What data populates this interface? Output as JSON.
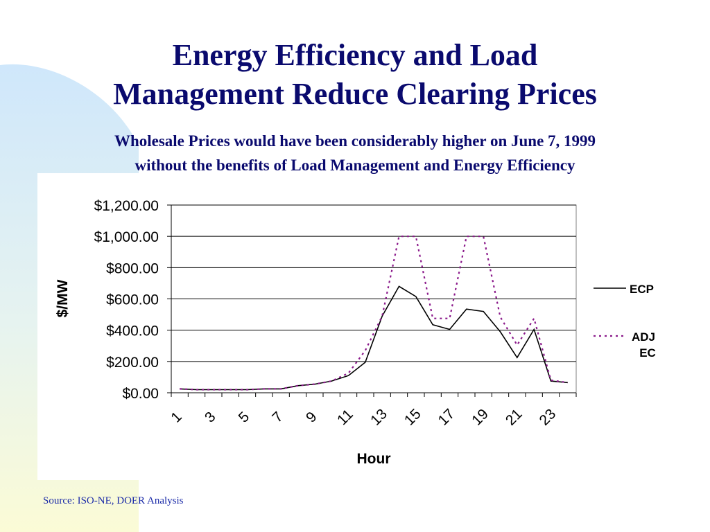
{
  "slide": {
    "title_line1": "Energy Efficiency and Load",
    "title_line2": "Management Reduce Clearing Prices",
    "subtitle_line1": "Wholesale Prices would have been considerably higher on June 7, 1999",
    "subtitle_line2": "without the benefits of Load Management and Energy Efficiency",
    "source": "Source:  ISO-NE, DOER Analysis"
  },
  "colors": {
    "title": "#0a0a6e",
    "source": "#1a2aa8",
    "ecp_line": "#000000",
    "adj_line": "#8b1a8b",
    "bg_blue": "#cfe7fb",
    "bg_yellow": "#fbfbd6"
  },
  "chart_data": {
    "type": "line",
    "xlabel": "Hour",
    "ylabel": "$/MW",
    "ylim": [
      0,
      1200
    ],
    "yticks": [
      0,
      200,
      400,
      600,
      800,
      1000,
      1200
    ],
    "ytick_labels": [
      "$0.00",
      "$200.00",
      "$400.00",
      "$600.00",
      "$800.00",
      "$1,000.00",
      "$1,200.00"
    ],
    "x": [
      1,
      2,
      3,
      4,
      5,
      6,
      7,
      8,
      9,
      10,
      11,
      12,
      13,
      14,
      15,
      16,
      17,
      18,
      19,
      20,
      21,
      22,
      23,
      24
    ],
    "xtick_labels": [
      "1",
      "3",
      "5",
      "7",
      "9",
      "11",
      "13",
      "15",
      "17",
      "19",
      "21",
      "23"
    ],
    "grid": "horizontal",
    "legend_position": "right",
    "series": [
      {
        "name": "ECP",
        "style": "solid",
        "color": "#000000",
        "values": [
          25,
          20,
          20,
          20,
          20,
          25,
          25,
          45,
          55,
          75,
          110,
          195,
          490,
          680,
          615,
          435,
          405,
          535,
          520,
          390,
          225,
          405,
          75,
          65
        ]
      },
      {
        "name": "ADJ EC",
        "legend_lines": [
          "ADJ",
          "EC"
        ],
        "style": "dotted",
        "color": "#8b1a8b",
        "values": [
          25,
          20,
          20,
          20,
          20,
          25,
          25,
          45,
          55,
          75,
          125,
          270,
          490,
          1000,
          1000,
          475,
          475,
          1000,
          1000,
          485,
          305,
          475,
          80,
          65
        ]
      }
    ]
  }
}
